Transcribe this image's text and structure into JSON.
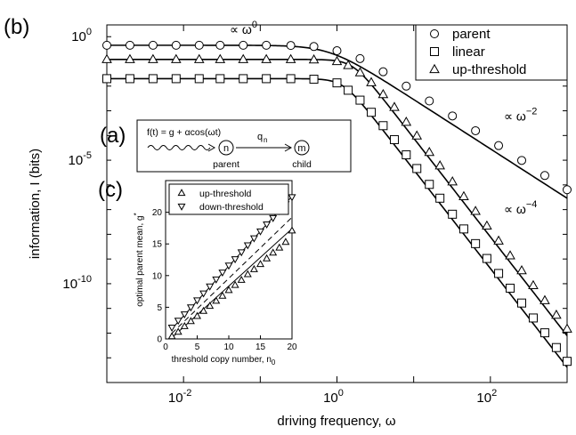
{
  "panel_labels": {
    "b": "(b)",
    "a": "(a)",
    "c": "(c)"
  },
  "chart_data": [
    {
      "type": "line",
      "panel": "(b)",
      "xlabel": "driving frequency, ω",
      "ylabel": "information, I (bits)",
      "xscale": "log",
      "yscale": "log",
      "xlim": [
        0.001,
        1000
      ],
      "ylim": [
        1e-14,
        3
      ],
      "x_ticks": [
        {
          "value": 0.01,
          "base": "10",
          "exp": "-2"
        },
        {
          "value": 1,
          "base": "10",
          "exp": "0"
        },
        {
          "value": 100,
          "base": "10",
          "exp": "2"
        }
      ],
      "y_ticks": [
        {
          "value": 1,
          "base": "10",
          "exp": "0"
        },
        {
          "value": 1e-05,
          "base": "10",
          "exp": "-5"
        },
        {
          "value": 1e-10,
          "base": "10",
          "exp": "-10"
        }
      ],
      "legend": {
        "placement": "top-right"
      },
      "series": [
        {
          "name": "parent",
          "marker": "circle",
          "plateau": 0.45,
          "corner": 0.8,
          "slope": 2,
          "x": [
            0.001,
            0.002,
            0.004,
            0.008,
            0.016,
            0.03,
            0.06,
            0.12,
            0.25,
            0.5,
            1,
            2,
            4,
            8,
            16,
            32,
            64,
            128,
            256,
            512,
            1000
          ],
          "values": [
            0.45,
            0.45,
            0.45,
            0.45,
            0.45,
            0.45,
            0.45,
            0.45,
            0.44,
            0.4,
            0.27,
            0.13,
            0.038,
            0.01,
            0.0025,
            0.00062,
            0.000156,
            3.9e-05,
            9.8e-06,
            2.4e-06,
            6.4e-07
          ]
        },
        {
          "name": "linear",
          "marker": "square",
          "plateau": 0.02,
          "corner": 1.2,
          "slope": 4,
          "x": [
            0.001,
            0.002,
            0.004,
            0.008,
            0.016,
            0.03,
            0.06,
            0.12,
            0.25,
            0.5,
            1,
            1.4,
            2,
            2.8,
            4,
            5.6,
            8,
            11,
            16,
            22,
            32,
            45,
            64,
            90,
            128,
            181,
            256,
            362,
            512,
            724,
            1000
          ],
          "values": [
            0.02,
            0.02,
            0.02,
            0.02,
            0.02,
            0.02,
            0.02,
            0.02,
            0.02,
            0.019,
            0.0135,
            0.0068,
            0.0027,
            0.00087,
            0.00025,
            6.8e-05,
            1.65e-05,
            4.6e-06,
            1.05e-06,
            2.9e-07,
            6.5e-08,
            1.65e-08,
            4.2e-09,
            1.05e-09,
            2.6e-10,
            6.6e-11,
            1.65e-11,
            4.1e-12,
            1.03e-12,
            2.6e-13,
            7.2e-14
          ]
        },
        {
          "name": "up-threshold",
          "marker": "triangle-up",
          "plateau": 0.12,
          "corner": 1.6,
          "slope": 4,
          "x": [
            0.001,
            0.002,
            0.004,
            0.008,
            0.016,
            0.03,
            0.06,
            0.12,
            0.25,
            0.5,
            1,
            1.4,
            2,
            2.8,
            4,
            5.6,
            8,
            11,
            16,
            22,
            32,
            45,
            64,
            90,
            128,
            181,
            256,
            362,
            512,
            724,
            1000
          ],
          "values": [
            0.12,
            0.12,
            0.12,
            0.12,
            0.12,
            0.12,
            0.12,
            0.12,
            0.12,
            0.117,
            0.1,
            0.069,
            0.035,
            0.014,
            0.0046,
            0.0014,
            0.00035,
            9.7e-05,
            2.1e-05,
            6e-06,
            1.35e-06,
            3.4e-07,
            8.6e-08,
            2.2e-08,
            5.4e-09,
            1.36e-09,
            3.4e-10,
            8.5e-11,
            2.1e-11,
            5.4e-12,
            1.48e-12
          ]
        }
      ],
      "annotations": [
        {
          "label": "∝ ω",
          "exp": "0",
          "at_x": 0.04,
          "at_y": 1.3
        },
        {
          "label": "∝ ω",
          "exp": "−2",
          "at_x": 150,
          "at_y": 0.0004
        },
        {
          "label": "∝ ω",
          "exp": "−4",
          "at_x": 150,
          "at_y": 7e-08
        }
      ]
    },
    {
      "type": "line",
      "panel": "(c)",
      "xlabel": "threshold copy number, n",
      "xlabel_sub": "0",
      "ylabel": "optimal parent mean, g",
      "ylabel_sup": "*",
      "xlim": [
        0,
        20
      ],
      "ylim": [
        0,
        25
      ],
      "x_ticks": [
        0,
        5,
        10,
        15,
        20
      ],
      "y_ticks": [
        0,
        5,
        10,
        15,
        20
      ],
      "legend": {
        "placement": "top-left"
      },
      "series": [
        {
          "name": "up-threshold",
          "marker": "triangle-up",
          "x": [
            1,
            2,
            3,
            4,
            5,
            6,
            7,
            8,
            9,
            10,
            11,
            12,
            13,
            14,
            15,
            16,
            17,
            18,
            19,
            20
          ],
          "values": [
            0.4,
            1.1,
            2.0,
            2.8,
            3.6,
            4.4,
            5.2,
            6.0,
            6.8,
            7.7,
            8.5,
            9.3,
            10.2,
            11.0,
            11.8,
            12.7,
            13.6,
            14.4,
            15.3,
            17.1
          ]
        },
        {
          "name": "down-threshold",
          "marker": "triangle-down",
          "x": [
            1,
            2,
            3,
            4,
            5,
            6,
            7,
            8,
            9,
            10,
            11,
            12,
            13,
            14,
            15,
            16,
            17,
            18,
            19,
            20
          ],
          "values": [
            1.8,
            2.9,
            3.9,
            5.0,
            6.1,
            7.2,
            8.3,
            9.4,
            10.5,
            11.6,
            12.6,
            13.7,
            14.8,
            15.9,
            17.0,
            18.1,
            19.1,
            20.2,
            21.3,
            22.4
          ]
        }
      ],
      "fit_lines": [
        {
          "x": [
            1,
            20
          ],
          "values": [
            0.2,
            17.4
          ]
        },
        {
          "x": [
            1,
            20
          ],
          "values": [
            0.9,
            19.2
          ]
        },
        {
          "x": [
            1,
            20
          ],
          "values": [
            1.6,
            22.5
          ]
        }
      ]
    }
  ],
  "schematic": {
    "panel": "(a)",
    "formula": "f(t) = g + αcos(ωt)",
    "parent_node": "n",
    "parent_label": "parent",
    "rate_label": "q",
    "rate_sub": "n",
    "child_node": "m",
    "child_label": "child"
  }
}
